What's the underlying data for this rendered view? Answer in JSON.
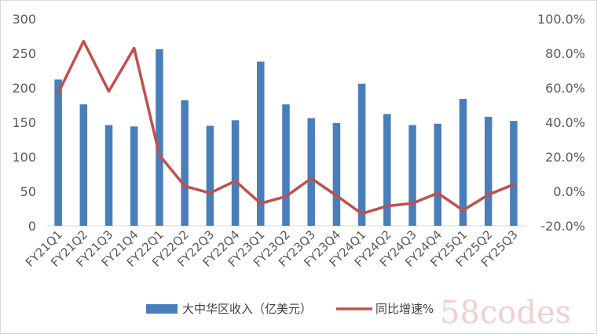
{
  "chart_data": {
    "type": "bar",
    "categories": [
      "FY21Q1",
      "FY21Q2",
      "FY21Q3",
      "FY21Q4",
      "FY22Q1",
      "FY22Q2",
      "FY22Q3",
      "FY22Q4",
      "FY23Q1",
      "FY23Q2",
      "FY23Q3",
      "FY23Q4",
      "FY24Q1",
      "FY24Q2",
      "FY24Q3",
      "FY24Q4",
      "FY25Q1",
      "FY25Q2",
      "FY25Q3"
    ],
    "series": [
      {
        "name": "大中华区收入（亿美元）",
        "type": "bar",
        "axis": "left",
        "color": "#4a7ebb",
        "values": [
          212,
          176,
          146,
          144,
          256,
          182,
          145,
          153,
          238,
          176,
          156,
          149,
          206,
          162,
          146,
          148,
          184,
          158,
          152
        ]
      },
      {
        "name": "同比增速%",
        "type": "line",
        "axis": "right",
        "color": "#c0504d",
        "values": [
          57.0,
          87.0,
          58.0,
          83.0,
          21.0,
          3.0,
          -1.0,
          6.0,
          -7.0,
          -3.0,
          7.5,
          -2.5,
          -13.0,
          -8.5,
          -7.0,
          -1.0,
          -11.0,
          -2.0,
          4.0
        ]
      }
    ],
    "y_left": {
      "ylim": [
        0,
        300
      ],
      "ticks": [
        "0",
        "50",
        "100",
        "150",
        "200",
        "250",
        "300"
      ]
    },
    "y_right": {
      "ylim": [
        -20,
        100
      ],
      "ticks": [
        "-20.0%",
        "0.0%",
        "20.0%",
        "40.0%",
        "60.0%",
        "80.0%",
        "100.0%"
      ]
    },
    "grid": false,
    "legend_position": "bottom"
  },
  "watermark": "58codes"
}
